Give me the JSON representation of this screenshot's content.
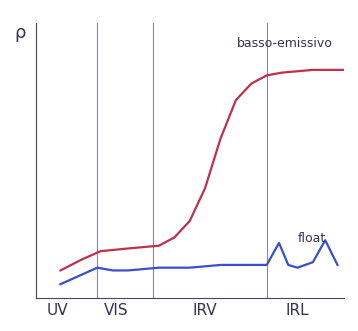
{
  "chart_data": {
    "type": "line",
    "y_label": "ρ",
    "xlim": [
      0,
      100
    ],
    "ylim": [
      0,
      100
    ],
    "xticks": [
      {
        "value": 7,
        "label": "UV"
      },
      {
        "value": 26,
        "label": "VIS"
      },
      {
        "value": 55,
        "label": "IRV"
      },
      {
        "value": 85,
        "label": "IRL"
      }
    ],
    "yticks": [],
    "tick_labels": "x",
    "dividers": [
      20,
      38,
      75
    ],
    "series": [
      {
        "name": "basso-emissivo",
        "color": "#c0304a",
        "x": [
          8,
          15,
          21,
          30,
          40,
          45,
          50,
          55,
          60,
          65,
          70,
          75,
          80,
          90,
          100
        ],
        "values": [
          10,
          14,
          17,
          18,
          19,
          22,
          28,
          40,
          58,
          72,
          78,
          81,
          82,
          83,
          83
        ]
      },
      {
        "name": "float",
        "color": "#3a4fc8",
        "x": [
          8,
          14,
          20,
          25,
          30,
          40,
          50,
          60,
          70,
          75,
          79,
          82,
          85,
          90,
          94,
          98
        ],
        "values": [
          5,
          8,
          11,
          10,
          10,
          11,
          11,
          12,
          12,
          12,
          20,
          12,
          11,
          13,
          21,
          12
        ]
      }
    ]
  }
}
